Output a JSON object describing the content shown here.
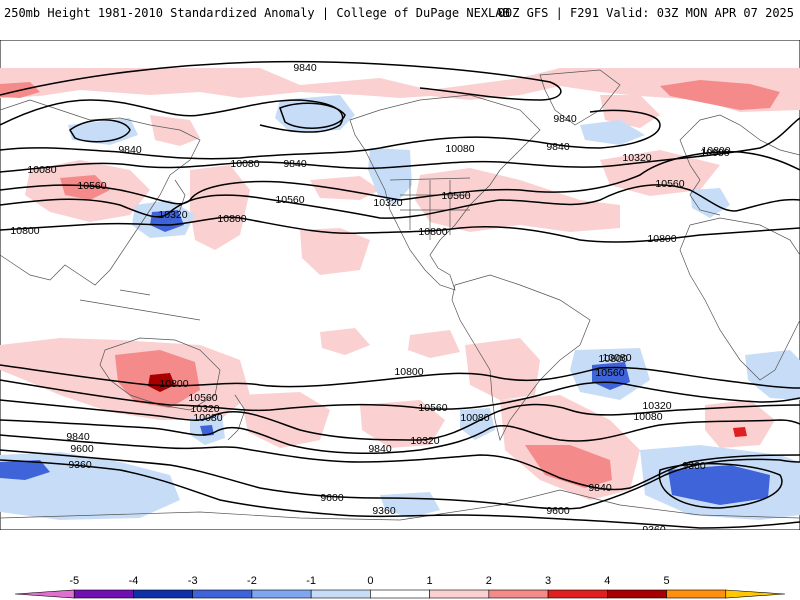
{
  "header": {
    "title": "250mb Height 1981-2010 Standardized Anomaly | College of DuPage NEXLAB",
    "run_info": "00Z GFS | F291 Valid: 03Z MON APR 07 2025"
  },
  "colors": {
    "neg_anomaly": "#c7ddf7",
    "neg_anomaly_strong": "#3f63d8",
    "pos_anomaly": "#fbd0d0",
    "pos_anomaly_strong": "#e86464",
    "pos_anomaly_extreme": "#a80000",
    "contour": "#000000",
    "coast": "#555555"
  },
  "contour_labels": [
    {
      "id": "c9840-a",
      "text": "9840"
    },
    {
      "id": "c9840-b",
      "text": "9840"
    },
    {
      "id": "c9840-c",
      "text": "9840"
    },
    {
      "id": "c9840-d",
      "text": "9840"
    },
    {
      "id": "c9840-e",
      "text": "9840"
    },
    {
      "id": "c9840-f",
      "text": "9840"
    },
    {
      "id": "c9840-g",
      "text": "9840"
    },
    {
      "id": "c9840-h",
      "text": "9840"
    },
    {
      "id": "c10080-a",
      "text": "10080"
    },
    {
      "id": "c10080-b",
      "text": "10080"
    },
    {
      "id": "c10080-c",
      "text": "10080"
    },
    {
      "id": "c10080-d",
      "text": "10080"
    },
    {
      "id": "c10080-e",
      "text": "10080"
    },
    {
      "id": "c10080-f",
      "text": "10080"
    },
    {
      "id": "c10080-g",
      "text": "10080"
    },
    {
      "id": "c10080-h",
      "text": "10080"
    },
    {
      "id": "c10320-a",
      "text": "10320"
    },
    {
      "id": "c10320-b",
      "text": "10320"
    },
    {
      "id": "c10320-c",
      "text": "10320"
    },
    {
      "id": "c10320-d",
      "text": "10320"
    },
    {
      "id": "c10320-e",
      "text": "10320"
    },
    {
      "id": "c10320-f",
      "text": "10320"
    },
    {
      "id": "c10560-a",
      "text": "10560"
    },
    {
      "id": "c10560-b",
      "text": "10560"
    },
    {
      "id": "c10560-c",
      "text": "10560"
    },
    {
      "id": "c10560-d",
      "text": "10560"
    },
    {
      "id": "c10560-e",
      "text": "10560"
    },
    {
      "id": "c10560-f",
      "text": "10560"
    },
    {
      "id": "c10560-g",
      "text": "10560"
    },
    {
      "id": "c10800-a",
      "text": "10800"
    },
    {
      "id": "c10800-b",
      "text": "10800"
    },
    {
      "id": "c10800-c",
      "text": "10800"
    },
    {
      "id": "c10800-d",
      "text": "10800"
    },
    {
      "id": "c10800-e",
      "text": "10800"
    },
    {
      "id": "c10800-f",
      "text": "10800"
    },
    {
      "id": "c10800-g",
      "text": "10800"
    },
    {
      "id": "c10800-h",
      "text": "10800"
    },
    {
      "id": "c9600-a",
      "text": "9600"
    },
    {
      "id": "c9600-b",
      "text": "9600"
    },
    {
      "id": "c9600-c",
      "text": "9600"
    },
    {
      "id": "c9360-a",
      "text": "9360"
    },
    {
      "id": "c9360-b",
      "text": "9360"
    },
    {
      "id": "c9360-c",
      "text": "9360"
    },
    {
      "id": "c9360-d",
      "text": "9360"
    }
  ],
  "colorbar": {
    "ticks": [
      "-5",
      "-4",
      "-3",
      "-2",
      "-1",
      "0",
      "1",
      "2",
      "3",
      "4",
      "5"
    ],
    "colors": [
      "#e070d0",
      "#7010b0",
      "#1030a8",
      "#3f63d8",
      "#7fa6ee",
      "#c7ddf7",
      "#ffffff",
      "#fbd0d0",
      "#f48a8a",
      "#e02020",
      "#a80000",
      "#ff9010",
      "#ffc800"
    ]
  }
}
